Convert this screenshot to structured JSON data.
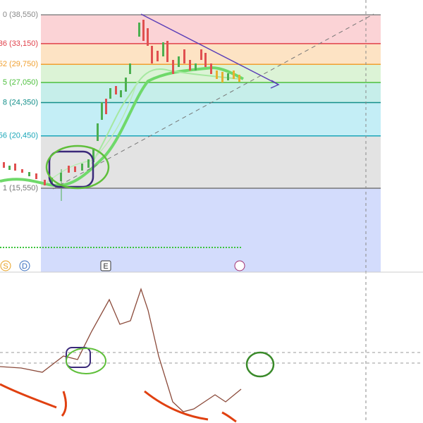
{
  "fib_levels": [
    {
      "value": 38550,
      "label": "0 (38,550)",
      "color": "#888888",
      "band_color": "#fbd3d6"
    },
    {
      "value": 33150,
      "label": "36 (33,150)",
      "color": "#e0404a",
      "band_color": "#fde3c4"
    },
    {
      "value": 29750,
      "label": "52 (29,750)",
      "color": "#f0a030",
      "band_color": "#dcf3d6"
    },
    {
      "value": 27050,
      "label": "5 (27,050)",
      "color": "#4cbf3c",
      "band_color": "#c6eeea"
    },
    {
      "value": 24350,
      "label": "8 (24,350)",
      "color": "#138f8a",
      "band_color": "#c4eef6"
    },
    {
      "value": 20450,
      "label": "56 (20,450)",
      "color": "#1aa6b8",
      "band_color": "#e3e3e3"
    },
    {
      "value": 15550,
      "label": "1 (15,550)",
      "color": "#777777",
      "band_color": "#d3dcfc"
    }
  ],
  "bottom_markers": [
    {
      "label": "S",
      "color": "#e8a020"
    },
    {
      "label": "D",
      "color": "#3a70c0"
    },
    {
      "label": "E",
      "color": "#333333"
    }
  ]
}
